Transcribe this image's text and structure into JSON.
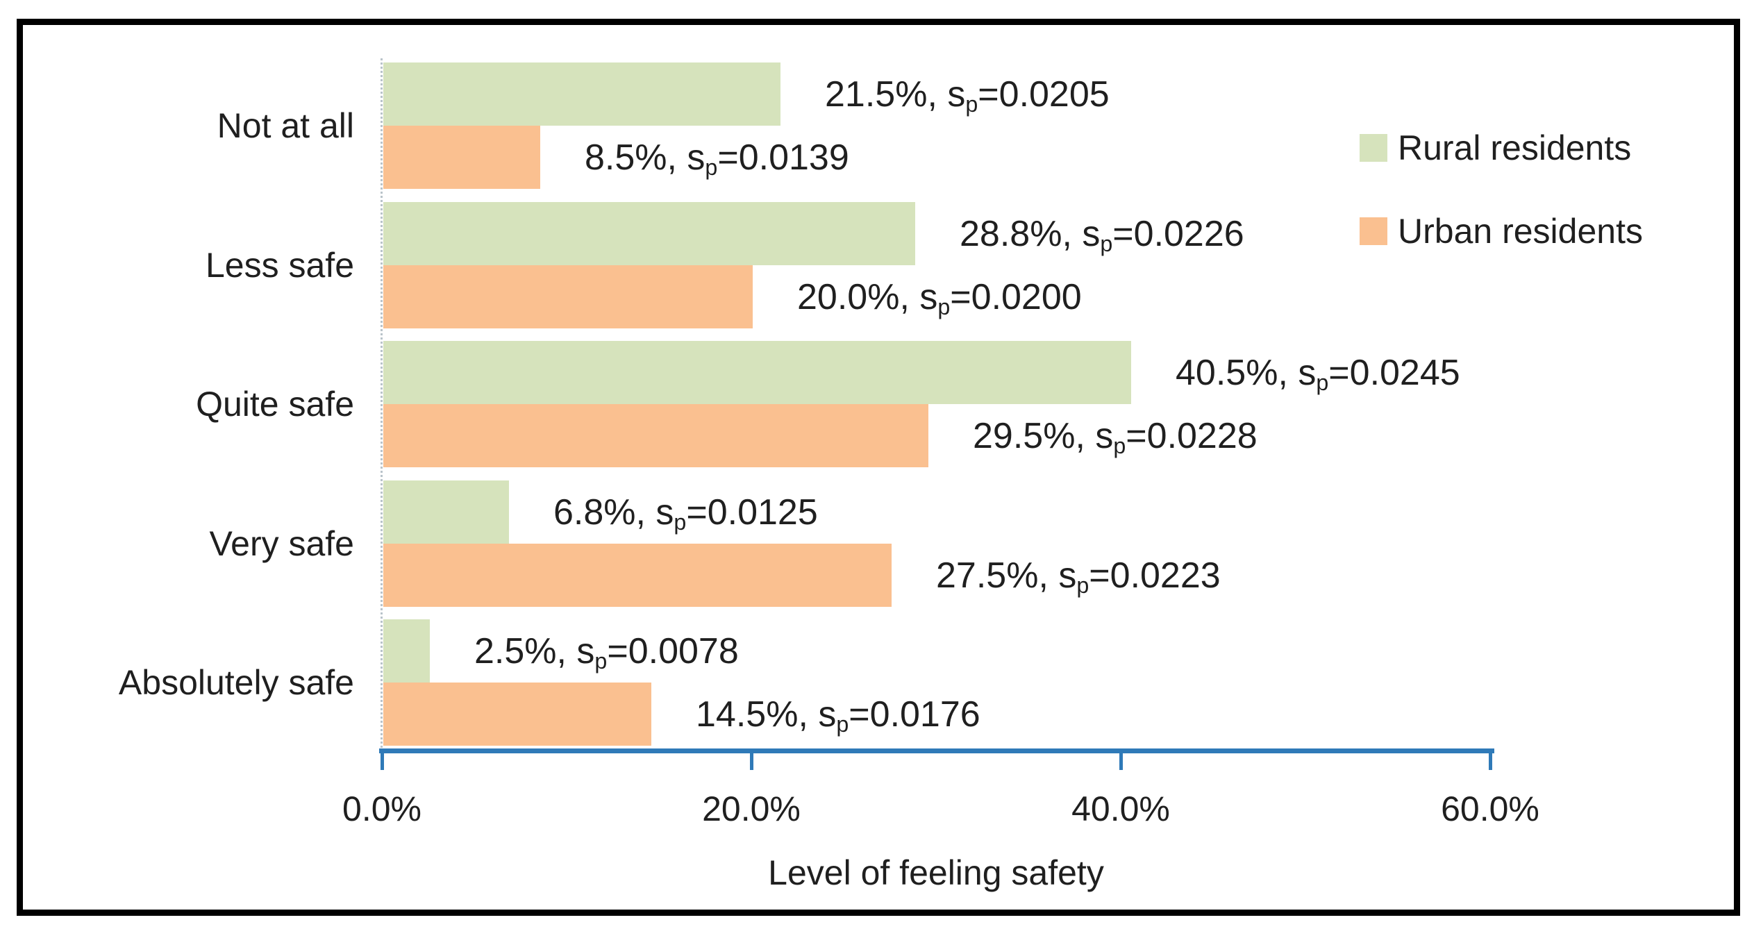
{
  "chart_data": {
    "type": "bar",
    "orientation": "horizontal",
    "title": "",
    "xlabel": "Level of feeling safety",
    "ylabel": "",
    "xlim": [
      0,
      60
    ],
    "grid": false,
    "x_ticks": [
      {
        "value": 0,
        "label": "0.0%"
      },
      {
        "value": 20,
        "label": "20.0%"
      },
      {
        "value": 40,
        "label": "40.0%"
      },
      {
        "value": 60,
        "label": "60.0%"
      }
    ],
    "categories": [
      "Not at all",
      "Less safe",
      "Quite safe",
      "Very safe",
      "Absolutely safe"
    ],
    "series": [
      {
        "name": "Rural residents",
        "color": "#d6e3bc",
        "values": [
          21.5,
          28.8,
          40.5,
          6.8,
          2.5
        ],
        "pct_labels": [
          "21.5%",
          "28.8%",
          "40.5%",
          "6.8%",
          "2.5%"
        ],
        "sp_symbol": "sp",
        "sp_labels": [
          "0.0205",
          "0.0226",
          "0.0245",
          "0.0125",
          "0.0078"
        ]
      },
      {
        "name": "Urban residents",
        "color": "#fac090",
        "values": [
          8.5,
          20.0,
          29.5,
          27.5,
          14.5
        ],
        "pct_labels": [
          "8.5%",
          "20.0%",
          "29.5%",
          "27.5%",
          "14.5%"
        ],
        "sp_symbol": "sp",
        "sp_labels": [
          "0.0139",
          "0.0200",
          "0.0228",
          "0.0223",
          "0.0176"
        ]
      }
    ],
    "legend": {
      "position": "upper-right",
      "entries": [
        "Rural residents",
        "Urban residents"
      ]
    },
    "colors": {
      "axis": "#2f7ab8",
      "text": "#1f1f1f",
      "category_axis": "#b9c3ca",
      "frame_border": "#000000"
    }
  }
}
